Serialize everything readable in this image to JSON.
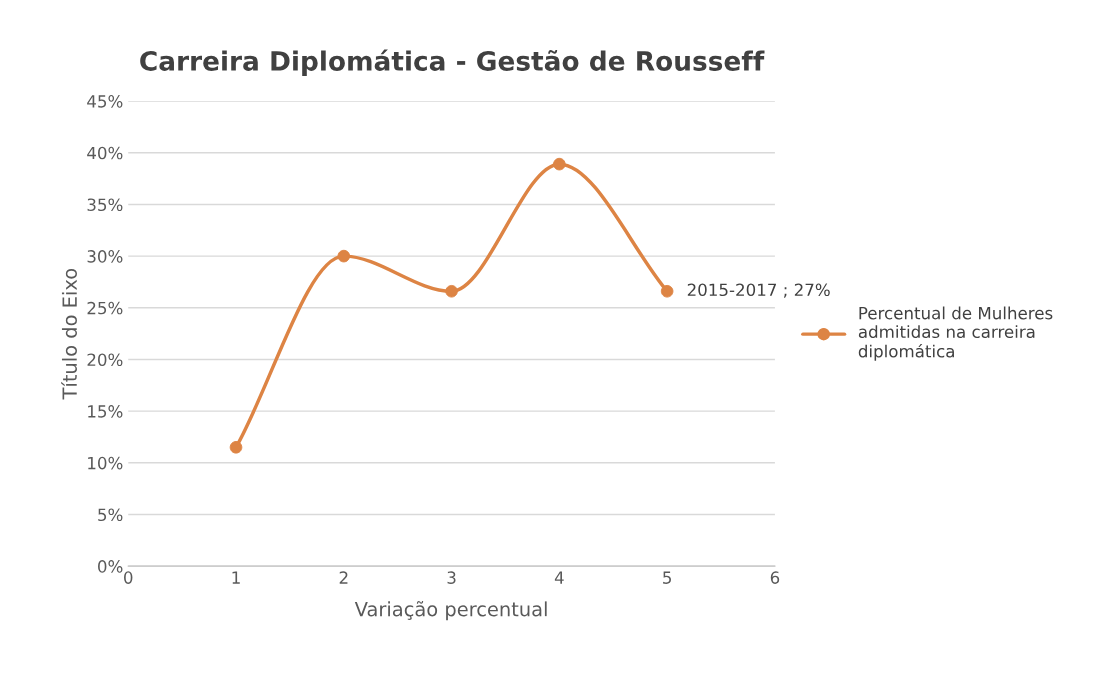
{
  "chart_data": {
    "type": "line",
    "title": "Carreira Diplomática - Gestão de Rousseff",
    "xlabel": "Variação percentual",
    "ylabel": "Título do Eixo",
    "x": [
      1,
      2,
      3,
      4,
      5
    ],
    "series": [
      {
        "name": "Percentual de Mulheres admitidas na carreira diplomática",
        "color": "#dd8444",
        "values": [
          11.5,
          30,
          26.6,
          38.9,
          26.6
        ]
      }
    ],
    "annotations": [
      {
        "text": "2015-2017 ; 27%",
        "x": 5,
        "y": 26.6
      }
    ],
    "xlim": [
      0,
      6
    ],
    "xticks": [
      0,
      1,
      2,
      3,
      4,
      5,
      6
    ],
    "ylim": [
      0,
      45
    ],
    "yticks": [
      {
        "value": 0,
        "label": "0%"
      },
      {
        "value": 5,
        "label": "5%"
      },
      {
        "value": 10,
        "label": "10%"
      },
      {
        "value": 15,
        "label": "15%"
      },
      {
        "value": 20,
        "label": "20%"
      },
      {
        "value": 25,
        "label": "25%"
      },
      {
        "value": 30,
        "label": "30%"
      },
      {
        "value": 35,
        "label": "35%"
      },
      {
        "value": 40,
        "label": "40%"
      },
      {
        "value": 45,
        "label": "45%"
      }
    ],
    "grid": "y",
    "legend": "right",
    "marker": "circle",
    "line_style": "solid"
  }
}
